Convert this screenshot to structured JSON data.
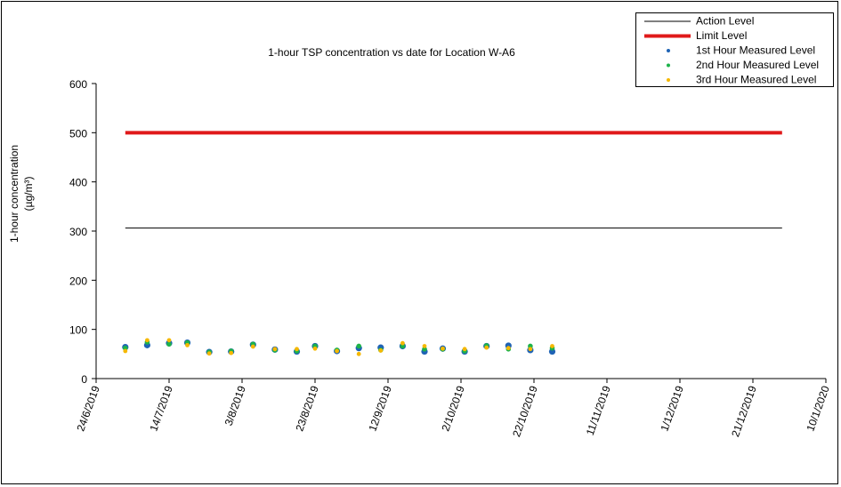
{
  "chart_data": {
    "type": "scatter",
    "title": "1-hour TSP concentration vs date for Location  W-A6",
    "y_label": "1-hour concentration",
    "y_unit": "(µg/m³)",
    "xlim": [
      "2019-06-24",
      "2020-01-10"
    ],
    "xticks": [
      {
        "value": "2019-06-24",
        "label": "24/6/2019"
      },
      {
        "value": "2019-07-14",
        "label": "14/7/2019"
      },
      {
        "value": "2019-08-03",
        "label": "3/8/2019"
      },
      {
        "value": "2019-08-23",
        "label": "23/8/2019"
      },
      {
        "value": "2019-09-12",
        "label": "12/9/2019"
      },
      {
        "value": "2019-10-02",
        "label": "2/10/2019"
      },
      {
        "value": "2019-10-22",
        "label": "22/10/2019"
      },
      {
        "value": "2019-11-11",
        "label": "11/11/2019"
      },
      {
        "value": "2019-12-01",
        "label": "1/12/2019"
      },
      {
        "value": "2019-12-21",
        "label": "21/12/2019"
      },
      {
        "value": "2020-01-10",
        "label": "10/1/2020"
      }
    ],
    "ylim": [
      0,
      600
    ],
    "yticks": [
      0,
      100,
      200,
      300,
      400,
      500,
      600
    ],
    "reference_lines": [
      {
        "name": "Action Level",
        "color": "#000000",
        "width": 1,
        "x": [
          "2019-07-02",
          "2019-12-29"
        ],
        "value": 306
      },
      {
        "name": "Limit Level",
        "color": "#e0191a",
        "width": 4,
        "x": [
          "2019-07-02",
          "2019-12-29"
        ],
        "value": 500
      }
    ],
    "x": [
      "2019-07-02",
      "2019-07-08",
      "2019-07-14",
      "2019-07-19",
      "2019-07-25",
      "2019-07-31",
      "2019-08-06",
      "2019-08-12",
      "2019-08-18",
      "2019-08-23",
      "2019-08-29",
      "2019-09-04",
      "2019-09-10",
      "2019-09-16",
      "2019-09-22",
      "2019-09-27",
      "2019-10-03",
      "2019-10-09",
      "2019-10-15",
      "2019-10-21",
      "2019-10-27"
    ],
    "series": [
      {
        "name": "1st Hour Measured Level",
        "color": "#1f63b5",
        "size": 3.6,
        "values": [
          64,
          68,
          72,
          73,
          54,
          55,
          69,
          59,
          55,
          66,
          56,
          62,
          63,
          66,
          55,
          61,
          55,
          66,
          67,
          58,
          55
        ]
      },
      {
        "name": "2nd Hour Measured Level",
        "color": "#1db34a",
        "size": 2.8,
        "values": [
          62,
          74,
          70,
          73,
          54,
          56,
          70,
          58,
          56,
          66,
          58,
          66,
          58,
          66,
          60,
          60,
          56,
          67,
          60,
          66,
          62
        ]
      },
      {
        "name": "3rd Hour Measured Level",
        "color": "#f5b800",
        "size": 2.4,
        "values": [
          56,
          78,
          78,
          68,
          51,
          52,
          65,
          60,
          60,
          61,
          56,
          50,
          57,
          72,
          66,
          61,
          60,
          63,
          62,
          60,
          66
        ]
      }
    ]
  }
}
